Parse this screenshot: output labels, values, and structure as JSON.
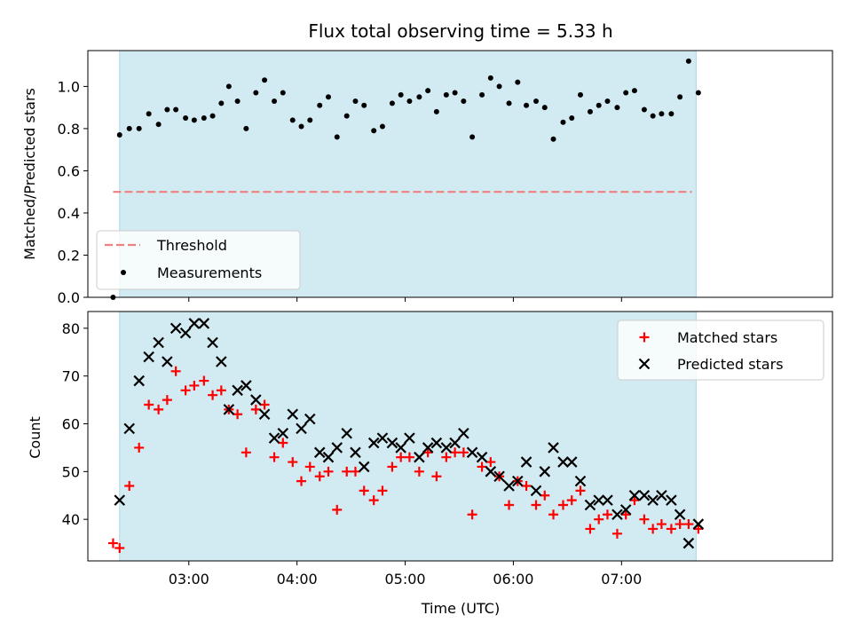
{
  "chart_data": [
    {
      "type": "scatter",
      "title": "Flux total observing time = 5.33 h",
      "xlabel": "",
      "ylabel": "Matched/Predicted stars",
      "ylim": [
        0,
        1.17
      ],
      "yticks": [
        "0.0",
        "0.2",
        "0.4",
        "0.6",
        "0.8",
        "1.0"
      ],
      "xlim_hours": [
        2.0667,
        8.95
      ],
      "shaded_span_hours": [
        2.36,
        7.69
      ],
      "shade_color": "#add8e6",
      "threshold": {
        "name": "Threshold",
        "value": 0.5,
        "x_range_hours": [
          2.3,
          7.65
        ],
        "color": "#f08080"
      },
      "legend": {
        "placement": "lower-left",
        "entries": [
          "Threshold",
          "Measurements"
        ]
      },
      "series": [
        {
          "name": "Measurements",
          "color": "#000000",
          "points": [
            [
              2.3,
              0.0
            ],
            [
              2.36,
              0.77
            ],
            [
              2.45,
              0.8
            ],
            [
              2.54,
              0.8
            ],
            [
              2.63,
              0.87
            ],
            [
              2.72,
              0.82
            ],
            [
              2.8,
              0.89
            ],
            [
              2.88,
              0.89
            ],
            [
              2.97,
              0.85
            ],
            [
              3.05,
              0.84
            ],
            [
              3.14,
              0.85
            ],
            [
              3.22,
              0.86
            ],
            [
              3.3,
              0.92
            ],
            [
              3.37,
              1.0
            ],
            [
              3.45,
              0.93
            ],
            [
              3.53,
              0.8
            ],
            [
              3.62,
              0.97
            ],
            [
              3.7,
              1.03
            ],
            [
              3.79,
              0.93
            ],
            [
              3.87,
              0.97
            ],
            [
              3.96,
              0.84
            ],
            [
              4.04,
              0.81
            ],
            [
              4.12,
              0.84
            ],
            [
              4.21,
              0.91
            ],
            [
              4.29,
              0.95
            ],
            [
              4.37,
              0.76
            ],
            [
              4.46,
              0.86
            ],
            [
              4.54,
              0.93
            ],
            [
              4.62,
              0.91
            ],
            [
              4.71,
              0.79
            ],
            [
              4.79,
              0.81
            ],
            [
              4.88,
              0.92
            ],
            [
              4.96,
              0.96
            ],
            [
              5.04,
              0.93
            ],
            [
              5.13,
              0.95
            ],
            [
              5.21,
              0.98
            ],
            [
              5.29,
              0.88
            ],
            [
              5.38,
              0.96
            ],
            [
              5.46,
              0.97
            ],
            [
              5.54,
              0.93
            ],
            [
              5.62,
              0.76
            ],
            [
              5.71,
              0.96
            ],
            [
              5.79,
              1.04
            ],
            [
              5.87,
              1.0
            ],
            [
              5.96,
              0.92
            ],
            [
              6.04,
              1.02
            ],
            [
              6.12,
              0.91
            ],
            [
              6.21,
              0.93
            ],
            [
              6.29,
              0.9
            ],
            [
              6.37,
              0.75
            ],
            [
              6.46,
              0.83
            ],
            [
              6.54,
              0.85
            ],
            [
              6.62,
              0.96
            ],
            [
              6.71,
              0.88
            ],
            [
              6.79,
              0.91
            ],
            [
              6.87,
              0.93
            ],
            [
              6.96,
              0.9
            ],
            [
              7.04,
              0.97
            ],
            [
              7.12,
              0.98
            ],
            [
              7.21,
              0.89
            ],
            [
              7.29,
              0.86
            ],
            [
              7.37,
              0.87
            ],
            [
              7.46,
              0.87
            ],
            [
              7.54,
              0.95
            ],
            [
              7.62,
              1.12
            ],
            [
              7.71,
              0.97
            ]
          ]
        }
      ]
    },
    {
      "type": "scatter",
      "title": "",
      "xlabel": "Time (UTC)",
      "ylabel": "Count",
      "ylim": [
        31.3,
        83.5
      ],
      "yticks": [
        "40",
        "50",
        "60",
        "70",
        "80"
      ],
      "xticks": [
        "03:00",
        "04:00",
        "05:00",
        "06:00",
        "07:00"
      ],
      "xlim_hours": [
        2.0667,
        8.95
      ],
      "shaded_span_hours": [
        2.36,
        7.69
      ],
      "shade_color": "#add8e6",
      "legend": {
        "placement": "upper-right",
        "entries": [
          "Matched stars",
          "Predicted stars"
        ]
      },
      "series": [
        {
          "name": "Matched stars",
          "marker": "plus",
          "color": "#ff0000",
          "points": [
            [
              2.3,
              35
            ],
            [
              2.36,
              34
            ],
            [
              2.45,
              47
            ],
            [
              2.54,
              55
            ],
            [
              2.63,
              64
            ],
            [
              2.72,
              63
            ],
            [
              2.8,
              65
            ],
            [
              2.88,
              71
            ],
            [
              2.97,
              67
            ],
            [
              3.05,
              68
            ],
            [
              3.14,
              69
            ],
            [
              3.22,
              66
            ],
            [
              3.3,
              67
            ],
            [
              3.37,
              63
            ],
            [
              3.45,
              62
            ],
            [
              3.53,
              54
            ],
            [
              3.62,
              63
            ],
            [
              3.7,
              64
            ],
            [
              3.79,
              53
            ],
            [
              3.87,
              56
            ],
            [
              3.96,
              52
            ],
            [
              4.04,
              48
            ],
            [
              4.12,
              51
            ],
            [
              4.21,
              49
            ],
            [
              4.29,
              50
            ],
            [
              4.37,
              42
            ],
            [
              4.46,
              50
            ],
            [
              4.54,
              50
            ],
            [
              4.62,
              46
            ],
            [
              4.71,
              44
            ],
            [
              4.79,
              46
            ],
            [
              4.88,
              51
            ],
            [
              4.96,
              53
            ],
            [
              5.04,
              53
            ],
            [
              5.13,
              50
            ],
            [
              5.21,
              54
            ],
            [
              5.29,
              49
            ],
            [
              5.38,
              53
            ],
            [
              5.46,
              54
            ],
            [
              5.54,
              54
            ],
            [
              5.62,
              41
            ],
            [
              5.71,
              51
            ],
            [
              5.79,
              52
            ],
            [
              5.87,
              49
            ],
            [
              5.96,
              43
            ],
            [
              6.04,
              48
            ],
            [
              6.12,
              47
            ],
            [
              6.21,
              43
            ],
            [
              6.29,
              45
            ],
            [
              6.37,
              41
            ],
            [
              6.46,
              43
            ],
            [
              6.54,
              44
            ],
            [
              6.62,
              46
            ],
            [
              6.71,
              38
            ],
            [
              6.79,
              40
            ],
            [
              6.87,
              41
            ],
            [
              6.96,
              37
            ],
            [
              7.04,
              41
            ],
            [
              7.12,
              44
            ],
            [
              7.21,
              40
            ],
            [
              7.29,
              38
            ],
            [
              7.37,
              39
            ],
            [
              7.46,
              38
            ],
            [
              7.54,
              39
            ],
            [
              7.62,
              39
            ],
            [
              7.71,
              38
            ]
          ]
        },
        {
          "name": "Predicted stars",
          "marker": "x",
          "color": "#000000",
          "points": [
            [
              2.36,
              44
            ],
            [
              2.45,
              59
            ],
            [
              2.54,
              69
            ],
            [
              2.63,
              74
            ],
            [
              2.72,
              77
            ],
            [
              2.8,
              73
            ],
            [
              2.88,
              80
            ],
            [
              2.97,
              79
            ],
            [
              3.05,
              81
            ],
            [
              3.14,
              81
            ],
            [
              3.22,
              77
            ],
            [
              3.3,
              73
            ],
            [
              3.37,
              63
            ],
            [
              3.45,
              67
            ],
            [
              3.53,
              68
            ],
            [
              3.62,
              65
            ],
            [
              3.7,
              62
            ],
            [
              3.79,
              57
            ],
            [
              3.87,
              58
            ],
            [
              3.96,
              62
            ],
            [
              4.04,
              59
            ],
            [
              4.12,
              61
            ],
            [
              4.21,
              54
            ],
            [
              4.29,
              53
            ],
            [
              4.37,
              55
            ],
            [
              4.46,
              58
            ],
            [
              4.54,
              54
            ],
            [
              4.62,
              51
            ],
            [
              4.71,
              56
            ],
            [
              4.79,
              57
            ],
            [
              4.88,
              56
            ],
            [
              4.96,
              55
            ],
            [
              5.04,
              57
            ],
            [
              5.13,
              53
            ],
            [
              5.21,
              55
            ],
            [
              5.29,
              56
            ],
            [
              5.38,
              55
            ],
            [
              5.46,
              56
            ],
            [
              5.54,
              58
            ],
            [
              5.62,
              54
            ],
            [
              5.71,
              53
            ],
            [
              5.79,
              50
            ],
            [
              5.87,
              49
            ],
            [
              5.96,
              47
            ],
            [
              6.04,
              48
            ],
            [
              6.12,
              52
            ],
            [
              6.21,
              46
            ],
            [
              6.29,
              50
            ],
            [
              6.37,
              55
            ],
            [
              6.46,
              52
            ],
            [
              6.54,
              52
            ],
            [
              6.62,
              48
            ],
            [
              6.71,
              43
            ],
            [
              6.79,
              44
            ],
            [
              6.87,
              44
            ],
            [
              6.96,
              41
            ],
            [
              7.04,
              42
            ],
            [
              7.12,
              45
            ],
            [
              7.21,
              45
            ],
            [
              7.29,
              44
            ],
            [
              7.37,
              45
            ],
            [
              7.46,
              44
            ],
            [
              7.54,
              41
            ],
            [
              7.62,
              35
            ],
            [
              7.71,
              39
            ]
          ]
        }
      ]
    }
  ]
}
